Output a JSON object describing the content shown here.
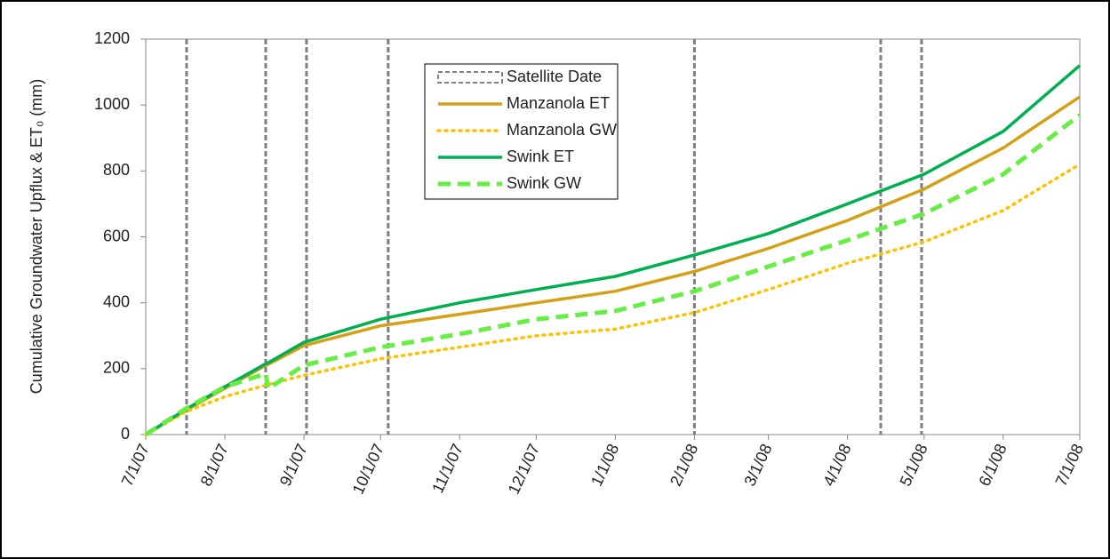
{
  "chart_data": {
    "type": "line",
    "ylabel": "Cumulative Groundwater Upflux & ET₀ (mm)",
    "xlim": [
      "7/1/07",
      "7/1/08"
    ],
    "xticks": [
      "7/1/07",
      "8/1/07",
      "9/1/07",
      "10/1/07",
      "11/1/07",
      "12/1/07",
      "1/1/08",
      "2/1/08",
      "3/1/08",
      "4/1/08",
      "5/1/08",
      "6/1/08",
      "7/1/08"
    ],
    "ylim": [
      0,
      1200
    ],
    "yticks": [
      0,
      200,
      400,
      600,
      800,
      1000,
      1200
    ],
    "vlines": {
      "name": "Satellite Date",
      "color": "#7f7f7f",
      "x": [
        "7/17/07",
        "8/17/07",
        "9/2/07",
        "10/4/07",
        "2/1/08",
        "4/14/08",
        "4/30/08"
      ]
    },
    "x": [
      "7/1/07",
      "7/17/07",
      "8/1/07",
      "8/17/07",
      "8/18/07",
      "9/1/07",
      "10/1/07",
      "11/1/07",
      "12/1/07",
      "1/1/08",
      "2/1/08",
      "3/1/08",
      "4/1/08",
      "5/1/08",
      "6/1/08",
      "7/1/08"
    ],
    "series": [
      {
        "name": "Manzanola ET",
        "color": "#d4a017",
        "style": "solid",
        "values": [
          0,
          75,
          140,
          210,
          213,
          270,
          330,
          365,
          400,
          435,
          495,
          565,
          650,
          745,
          870,
          1025
        ]
      },
      {
        "name": "Manzanola GW",
        "color": "#ffc000",
        "style": "dotted",
        "values": [
          0,
          70,
          115,
          150,
          152,
          180,
          230,
          265,
          300,
          320,
          370,
          440,
          520,
          585,
          680,
          820
        ]
      },
      {
        "name": "Swink ET",
        "color": "#00b050",
        "style": "solid",
        "values": [
          0,
          78,
          145,
          215,
          218,
          280,
          350,
          400,
          440,
          480,
          545,
          610,
          700,
          790,
          920,
          1120
        ]
      },
      {
        "name": "Swink GW",
        "color": "#66ee44",
        "style": "dashed",
        "values": [
          0,
          80,
          145,
          185,
          140,
          210,
          265,
          305,
          350,
          375,
          435,
          510,
          590,
          670,
          790,
          970
        ]
      }
    ]
  }
}
